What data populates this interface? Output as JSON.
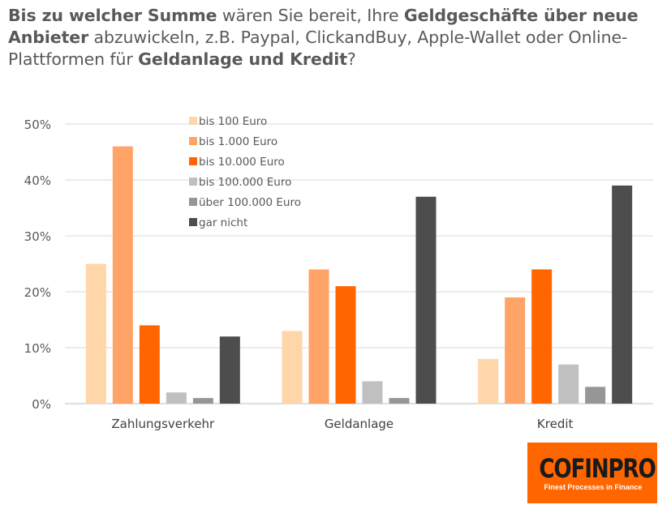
{
  "title": {
    "parts": [
      {
        "text": "Bis zu welcher Summe",
        "bold": true
      },
      {
        "text": " wären Sie bereit, Ihre ",
        "bold": false
      },
      {
        "text": "Geldgeschäfte über neue Anbieter",
        "bold": true
      },
      {
        "text": " abzuwickeln, z.B. Paypal, ClickandBuy, Apple-Wallet oder Online-Plattformen für ",
        "bold": false
      },
      {
        "text": "Geldanlage und Kredit",
        "bold": true
      },
      {
        "text": "?",
        "bold": false
      }
    ]
  },
  "logo": {
    "word": "COFINPRO",
    "tagline": "Finest Processes in Finance"
  },
  "chart_data": {
    "type": "bar",
    "categories": [
      "Zahlungsverkehr",
      "Geldanlage",
      "Kredit"
    ],
    "series": [
      {
        "name": "bis 100 Euro",
        "values": [
          25,
          13,
          8
        ],
        "color": "#ffd5aa"
      },
      {
        "name": "bis 1.000 Euro",
        "values": [
          46,
          24,
          19
        ],
        "color": "#ffa366"
      },
      {
        "name": "bis 10.000 Euro",
        "values": [
          14,
          21,
          24
        ],
        "color": "#ff6600"
      },
      {
        "name": "bis 100.000 Euro",
        "values": [
          2,
          4,
          7
        ],
        "color": "#c0c0c0"
      },
      {
        "name": "über 100.000 Euro",
        "values": [
          1,
          1,
          3
        ],
        "color": "#969696"
      },
      {
        "name": "gar nicht",
        "values": [
          12,
          37,
          39
        ],
        "color": "#4d4d4d"
      }
    ],
    "ylim": [
      0,
      50
    ],
    "yticks": [
      0,
      10,
      20,
      30,
      40,
      50
    ],
    "ytick_labels": [
      "0%",
      "10%",
      "20%",
      "30%",
      "40%",
      "50%"
    ],
    "grid": true,
    "legend_position": "top-left inside plot"
  }
}
